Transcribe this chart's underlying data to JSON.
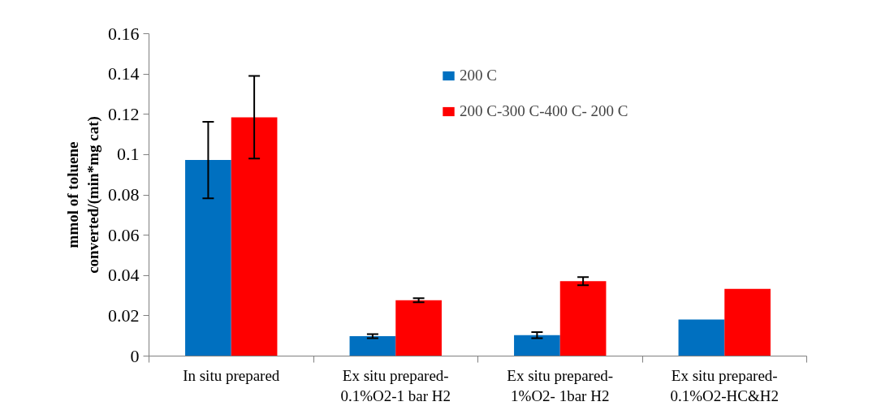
{
  "chart_data": {
    "type": "bar",
    "ylabel": "mmol of toluene\nconverted/(min*mg cat)",
    "categories": [
      "In situ prepared",
      "Ex situ prepared-\n0.1%O2-1 bar H2",
      "Ex situ prepared-\n1%O2- 1bar H2",
      "Ex situ prepared-\n0.1%O2-HC&H2"
    ],
    "series": [
      {
        "name": "200 C",
        "color": "#0070c0",
        "values": [
          0.0973,
          0.0099,
          0.0104,
          0.0181
        ],
        "errors": [
          0.019,
          0.001,
          0.0015,
          null
        ]
      },
      {
        "name": "200 C-300 C-400 C- 200 C",
        "color": "#ff0000",
        "values": [
          0.1185,
          0.0277,
          0.0372,
          0.0333
        ],
        "errors": [
          0.0205,
          0.001,
          0.002,
          null
        ]
      }
    ],
    "ylim": [
      0,
      0.16
    ],
    "yticks": [
      0,
      0.02,
      0.04,
      0.06,
      0.08,
      0.1,
      0.12,
      0.14,
      0.16
    ],
    "grid": false,
    "legend": "top right"
  }
}
